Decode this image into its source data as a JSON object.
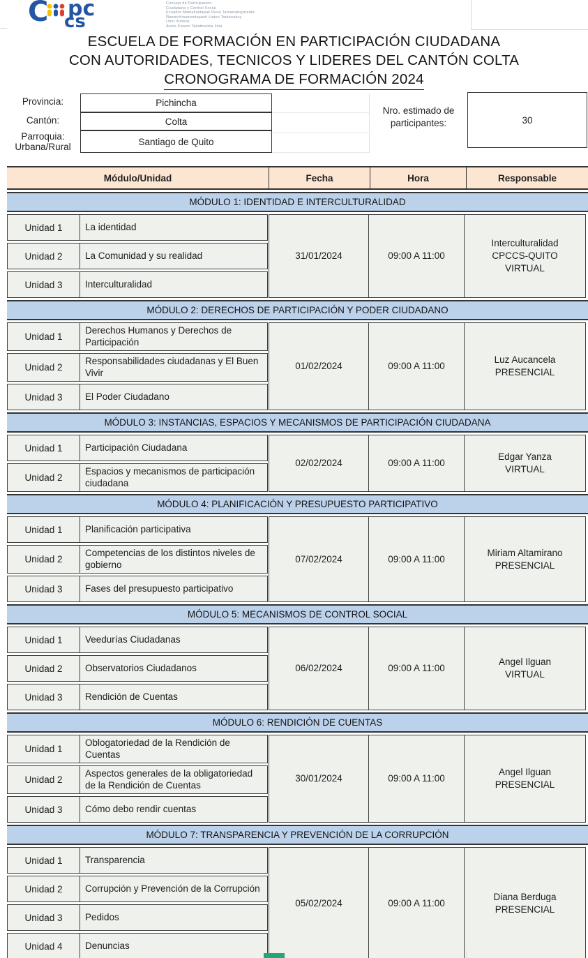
{
  "logo": {
    "org": "CPCCS",
    "text_lines": [
      "Consejo de Participación",
      "Ciudadana y Control Social",
      "Ecuador Mamallaktapak Runa Tantanakuymanta",
      "Ñawinchinamantapash Hatun Tantanakuy",
      "Uunt Iruntrar,",
      "Aents Kawen Takatmainia Iinia"
    ],
    "colors": {
      "blue": "#2456a4",
      "yellow": "#f5c400",
      "red": "#d8422f"
    }
  },
  "title": {
    "line1": "ESCUELA DE FORMACIÓN EN PARTICIPACIÓN CIUDADANA",
    "line2": "CON AUTORIDADES, TECNICOS Y LIDERES DEL CANTÓN COLTA",
    "line3": "CRONOGRAMA DE FORMACIÓN 2024"
  },
  "info": {
    "fields": [
      {
        "label": "Provincia:",
        "value": "Pichincha"
      },
      {
        "label": "Cantón:",
        "value": "Colta"
      },
      {
        "label_lines": [
          "Parroquia:",
          "Urbana/Rural"
        ],
        "value": "Santiago de Quito"
      }
    ],
    "participants": {
      "label_lines": [
        "Nro. estimado de",
        "participantes:"
      ],
      "value": "30"
    }
  },
  "table": {
    "headers": [
      "Módulo/Unidad",
      "Fecha",
      "Hora",
      "Responsable"
    ],
    "colors": {
      "header_bg": "#fce5d1",
      "module_bg": "#bcd2eb",
      "cell_bg": "#eff1ed",
      "border": "#3f3f3f"
    },
    "modules": [
      {
        "title": "MÓDULO 1: IDENTIDAD E INTERCULTURALIDAD",
        "units": [
          {
            "unit": "Unidad 1",
            "topic": "La identidad"
          },
          {
            "unit": "Unidad 2",
            "topic": "La Comunidad y su realidad"
          },
          {
            "unit": "Unidad 3",
            "topic": "Interculturalidad"
          }
        ],
        "fecha": "31/01/2024",
        "hora": "09:00 A 11:00",
        "responsable_lines": [
          "Interculturalidad",
          "CPCCS-QUITO",
          "VIRTUAL"
        ]
      },
      {
        "title": "MÓDULO 2: DERECHOS DE PARTICIPACIÓN Y PODER CIUDADANO",
        "units": [
          {
            "unit": "Unidad 1",
            "topic": "Derechos Humanos y Derechos de Participación"
          },
          {
            "unit": "Unidad 2",
            "topic": "Responsabilidades ciudadanas y El Buen Vivir"
          },
          {
            "unit": "Unidad 3",
            "topic": "El Poder Ciudadano"
          }
        ],
        "fecha": "01/02/2024",
        "hora": "09:00 A 11:00",
        "responsable_lines": [
          "Luz Aucancela",
          "PRESENCIAL"
        ]
      },
      {
        "title": "MÓDULO 3: INSTANCIAS, ESPACIOS Y MECANISMOS DE PARTICIPACIÓN CIUDADANA",
        "units": [
          {
            "unit": "Unidad 1",
            "topic": "Participación Ciudadana"
          },
          {
            "unit": "Unidad 2",
            "topic": "Espacios y mecanismos de participación ciudadana"
          }
        ],
        "fecha": "02/02/2024",
        "hora": "09:00 A 11:00",
        "responsable_lines": [
          "Edgar Yanza",
          "VIRTUAL"
        ]
      },
      {
        "title": "MÓDULO 4:  PLANIFICACIÓN Y PRESUPUESTO PARTICIPATIVO",
        "units": [
          {
            "unit": "Unidad 1",
            "topic": "Planificación participativa"
          },
          {
            "unit": "Unidad 2",
            "topic": "Competencias de los distintos niveles de gobierno"
          },
          {
            "unit": "Unidad 3",
            "topic": "Fases del presupuesto participativo"
          }
        ],
        "fecha": "07/02/2024",
        "hora": "09:00 A 11:00",
        "responsable_lines": [
          "Miriam Altamirano",
          "PRESENCIAL"
        ]
      },
      {
        "title": "MÓDULO 5: MECANISMOS DE CONTROL SOCIAL",
        "units": [
          {
            "unit": "Unidad 1",
            "topic": "Veedurías Ciudadanas"
          },
          {
            "unit": "Unidad 2",
            "topic": "Observatorios Ciudadanos"
          },
          {
            "unit": "Unidad 3",
            "topic": "Rendición de Cuentas"
          }
        ],
        "fecha": "06/02/2024",
        "hora": "09:00 A 11:00",
        "responsable_lines": [
          "Angel Ilguan",
          "VIRTUAL"
        ]
      },
      {
        "title": "MÓDULO 6: RENDICIÓN DE CUENTAS",
        "units": [
          {
            "unit": "Unidad 1",
            "topic": "Oblogatoriedad de la Rendición de Cuentas"
          },
          {
            "unit": "Unidad 2",
            "topic": "Aspectos generales de la obligatoriedad de la Rendición de Cuentas"
          },
          {
            "unit": "Unidad 3",
            "topic": "Cómo debo rendir cuentas"
          }
        ],
        "fecha": "30/01/2024",
        "hora": "09:00 A 11:00",
        "responsable_lines": [
          "Angel Ilguan",
          "PRESENCIAL"
        ]
      },
      {
        "title": "MÓDULO 7: TRANSPARENCIA Y PREVENCIÓN DE LA CORRUPCIÓN",
        "units": [
          {
            "unit": "Unidad 1",
            "topic": "Transparencia"
          },
          {
            "unit": "Unidad 2",
            "topic": "Corrupción y Prevención de la Corrupción"
          },
          {
            "unit": "Unidad 3",
            "topic": "Pedidos"
          },
          {
            "unit": "Unidad 4",
            "topic": "Denuncias"
          }
        ],
        "fecha": "05/02/2024",
        "hora": "09:00 A 11:00",
        "responsable_lines": [
          "Diana Berduga",
          "PRESENCIAL"
        ]
      }
    ]
  },
  "selection": {
    "fill_handle_color": "#27a57a"
  }
}
